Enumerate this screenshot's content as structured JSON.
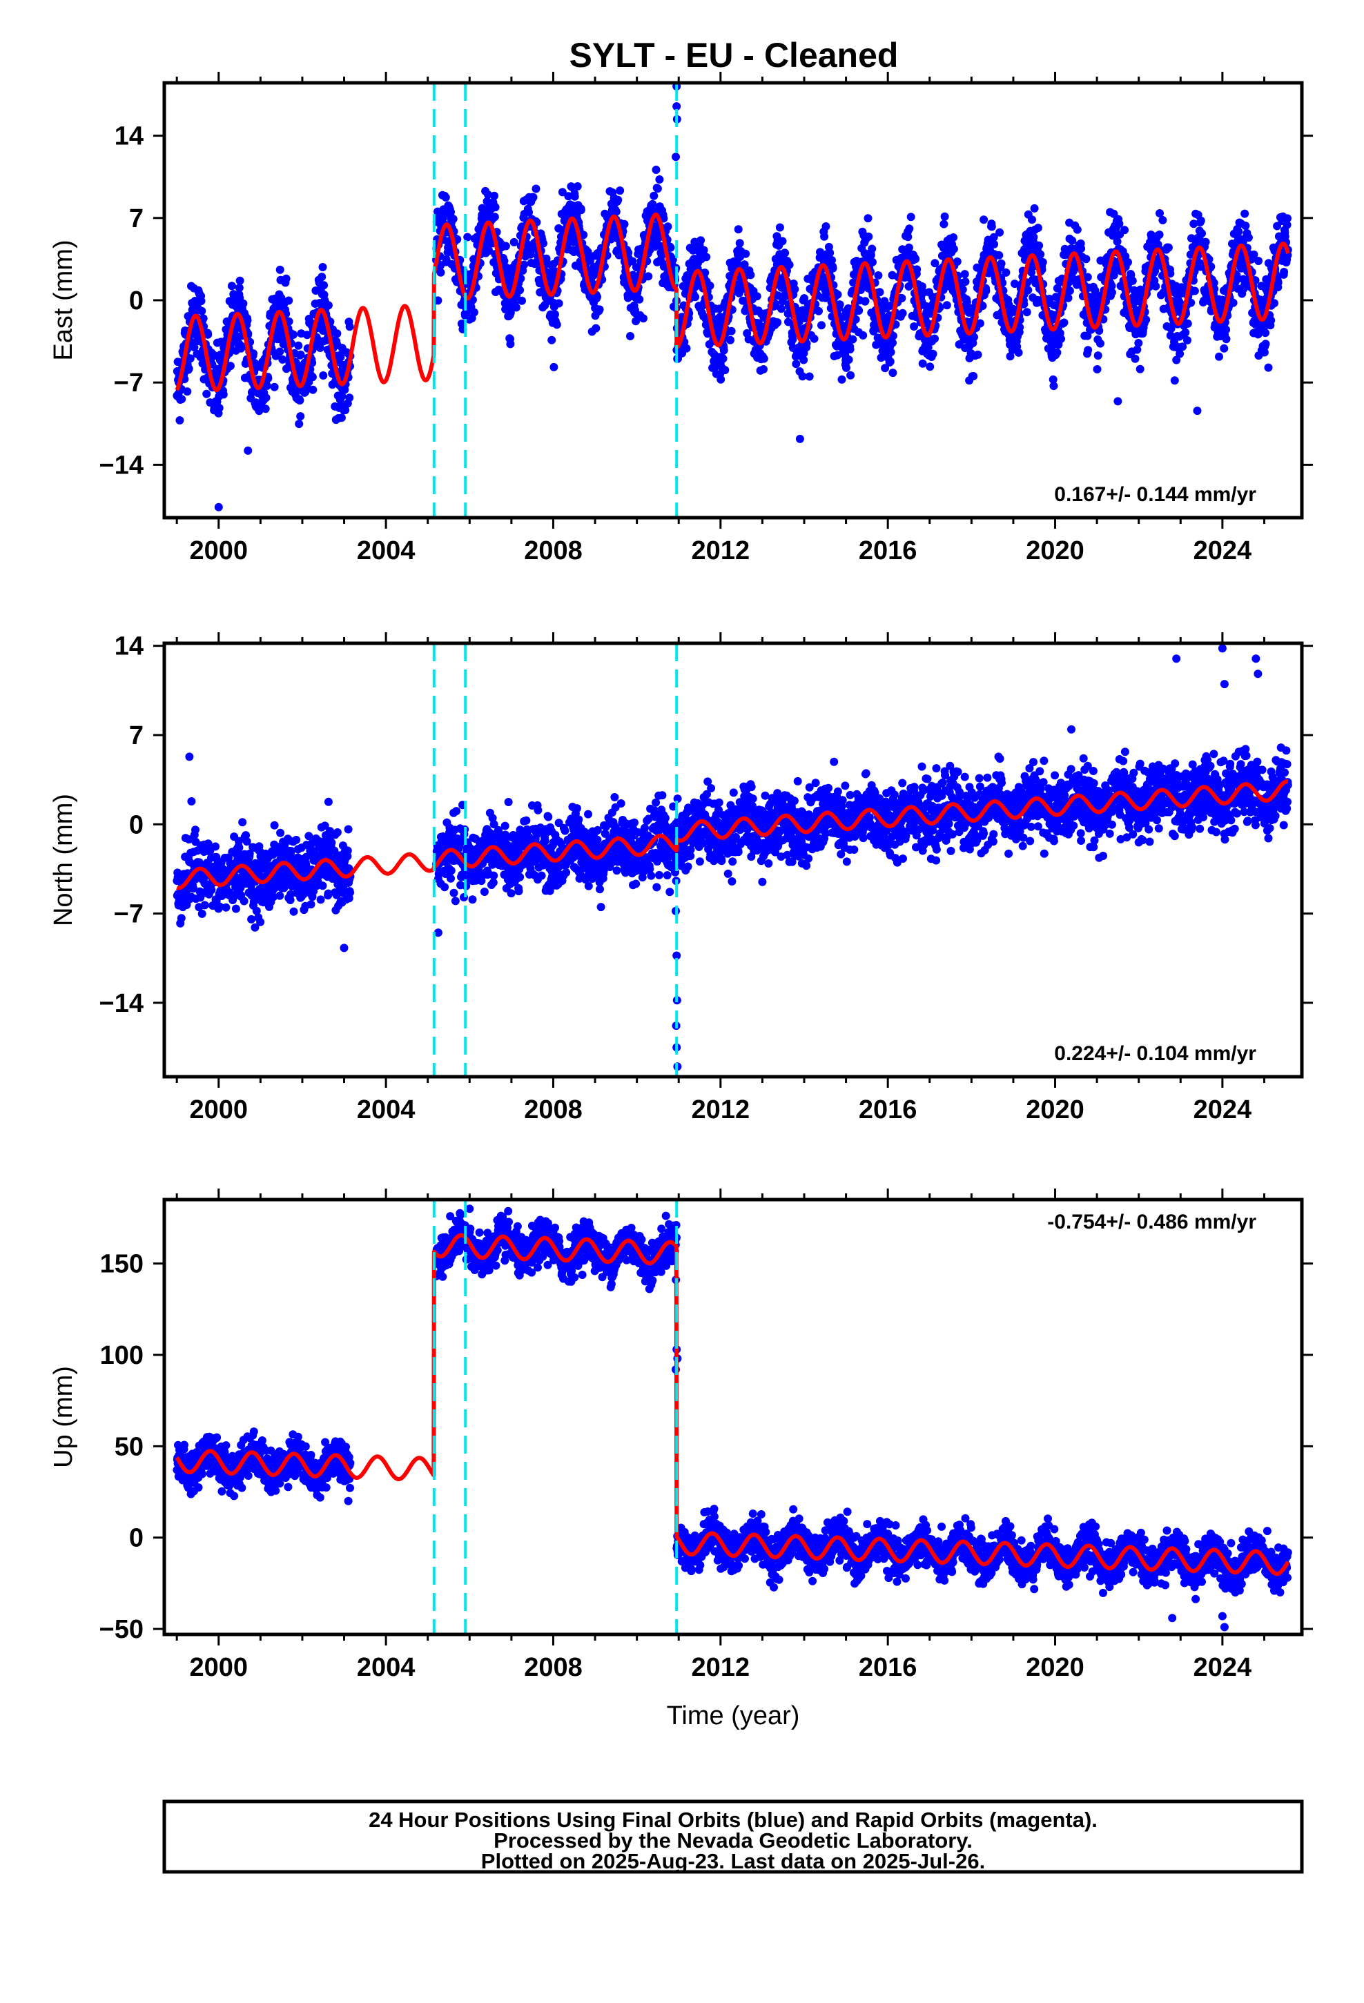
{
  "title": "SYLT  - EU - Cleaned",
  "footer": {
    "lines": [
      "24 Hour Positions Using Final Orbits (blue) and Rapid Orbits (magenta).",
      "Processed by the Nevada Geodetic Laboratory.",
      "Plotted on 2025-Aug-23. Last data on 2025-Jul-26."
    ]
  },
  "colors": {
    "observations": "#0000ff",
    "model": "#ff0000",
    "offsets": "#00e5ee",
    "frame": "#000000"
  },
  "chart_data": [
    {
      "type": "scatter",
      "name": "east",
      "ylabel": "East (mm)",
      "xlabel": "",
      "xlim": [
        1998.7,
        2025.9
      ],
      "ylim": [
        -18.5,
        18.5
      ],
      "yticks": [
        -14,
        -7,
        0,
        7,
        14
      ],
      "xticks": [
        2000,
        2004,
        2008,
        2012,
        2016,
        2020,
        2024
      ],
      "rate_label": "0.167+/- 0.144 mm/yr",
      "rate_position": "bottom-right",
      "offset_epochs": [
        2005.15,
        2005.9,
        2010.95
      ],
      "data_spans": [
        [
          1999.0,
          2003.15
        ],
        [
          2005.2,
          2010.95
        ],
        [
          2010.95,
          2025.57
        ]
      ],
      "model_segments": [
        {
          "x0": 1999.0,
          "x1": 2005.15,
          "offset": -4.6,
          "trend": 0.167,
          "amp": 3.2,
          "phase": 0.2
        },
        {
          "x0": 2005.15,
          "x1": 2010.95,
          "offset": 3.2,
          "trend": 0.167,
          "amp": 3.2,
          "phase": 0.2
        },
        {
          "x0": 2010.95,
          "x1": 2025.57,
          "offset": -0.8,
          "trend": 0.167,
          "amp": 3.2,
          "phase": 0.2
        }
      ],
      "scatter_sigma": 1.6,
      "outliers": [
        {
          "x": 2000.0,
          "y": -17.6
        },
        {
          "x": 2010.95,
          "y": 18.2
        },
        {
          "x": 2010.95,
          "y": 16.5
        },
        {
          "x": 2010.96,
          "y": 15.4
        },
        {
          "x": 2010.93,
          "y": 12.2
        },
        {
          "x": 2013.9,
          "y": -11.8
        },
        {
          "x": 2023.4,
          "y": -9.4
        },
        {
          "x": 2021.5,
          "y": -8.6
        },
        {
          "x": 2000.7,
          "y": -12.8
        },
        {
          "x": 2022.5,
          "y": 7.4
        },
        {
          "x": 2010.5,
          "y": 9.5
        }
      ]
    },
    {
      "type": "scatter",
      "name": "north",
      "ylabel": "North (mm)",
      "xlabel": "",
      "xlim": [
        1998.7,
        2025.9
      ],
      "ylim": [
        -19.8,
        14.2
      ],
      "yticks": [
        -14,
        -7,
        0,
        7,
        14
      ],
      "xticks": [
        2000,
        2004,
        2008,
        2012,
        2016,
        2020,
        2024
      ],
      "rate_label": "0.224+/- 0.104 mm/yr",
      "rate_position": "bottom-right",
      "offset_epochs": [
        2005.15,
        2005.9,
        2010.95
      ],
      "data_spans": [
        [
          1999.0,
          2003.15
        ],
        [
          2005.2,
          2010.95
        ],
        [
          2010.95,
          2025.57
        ]
      ],
      "model_segments": [
        {
          "x0": 1999.0,
          "x1": 2005.15,
          "offset": -4.3,
          "trend": 0.224,
          "amp": 0.7,
          "phase": 0.3
        },
        {
          "x0": 2005.15,
          "x1": 2010.95,
          "offset": -2.8,
          "trend": 0.224,
          "amp": 0.7,
          "phase": 0.3
        },
        {
          "x0": 2010.95,
          "x1": 2025.57,
          "offset": -0.6,
          "trend": 0.224,
          "amp": 0.7,
          "phase": 0.3
        }
      ],
      "scatter_sigma": 1.3,
      "outliers": [
        {
          "x": 1999.3,
          "y": 5.3
        },
        {
          "x": 1999.35,
          "y": 1.8
        },
        {
          "x": 2003.0,
          "y": -9.7
        },
        {
          "x": 2005.25,
          "y": -8.5
        },
        {
          "x": 2010.95,
          "y": -10.3
        },
        {
          "x": 2010.96,
          "y": -13.8
        },
        {
          "x": 2010.94,
          "y": -15.8
        },
        {
          "x": 2010.95,
          "y": -17.5
        },
        {
          "x": 2010.97,
          "y": -19.0
        },
        {
          "x": 2010.93,
          "y": -6.8
        },
        {
          "x": 2022.9,
          "y": 13.0
        },
        {
          "x": 2024.0,
          "y": 13.8
        },
        {
          "x": 2024.8,
          "y": 13.0
        },
        {
          "x": 2024.85,
          "y": 11.8
        },
        {
          "x": 2024.05,
          "y": 11.0
        }
      ]
    },
    {
      "type": "scatter",
      "name": "up",
      "ylabel": "Up (mm)",
      "xlabel": "Time (year)",
      "xlim": [
        1998.7,
        2025.9
      ],
      "ylim": [
        -53,
        185
      ],
      "yticks": [
        -50,
        0,
        50,
        100,
        150
      ],
      "xticks": [
        2000,
        2004,
        2008,
        2012,
        2016,
        2020,
        2024
      ],
      "rate_label": "-0.754+/- 0.486 mm/yr",
      "rate_position": "top-right",
      "offset_epochs": [
        2005.15,
        2005.9,
        2010.95
      ],
      "data_spans": [
        [
          1999.0,
          2003.15
        ],
        [
          2005.2,
          2010.95
        ],
        [
          2010.95,
          2025.57
        ]
      ],
      "model_segments": [
        {
          "x0": 1999.0,
          "x1": 2005.15,
          "offset": 42,
          "trend": -0.754,
          "amp": 6,
          "phase": 0.55
        },
        {
          "x0": 2005.15,
          "x1": 2010.95,
          "offset": 160,
          "trend": -0.754,
          "amp": 6,
          "phase": 0.55
        },
        {
          "x0": 2010.95,
          "x1": 2025.57,
          "offset": -3,
          "trend": -0.754,
          "amp": 6,
          "phase": 0.55
        }
      ],
      "scatter_sigma": 5.5,
      "outliers": [
        {
          "x": 2006.0,
          "y": 180
        },
        {
          "x": 2010.95,
          "y": 103
        },
        {
          "x": 2010.97,
          "y": 98
        },
        {
          "x": 2010.93,
          "y": 92
        },
        {
          "x": 2022.8,
          "y": -44
        },
        {
          "x": 2024.0,
          "y": -43
        },
        {
          "x": 2024.05,
          "y": -49
        },
        {
          "x": 2003.1,
          "y": 20
        }
      ]
    }
  ]
}
